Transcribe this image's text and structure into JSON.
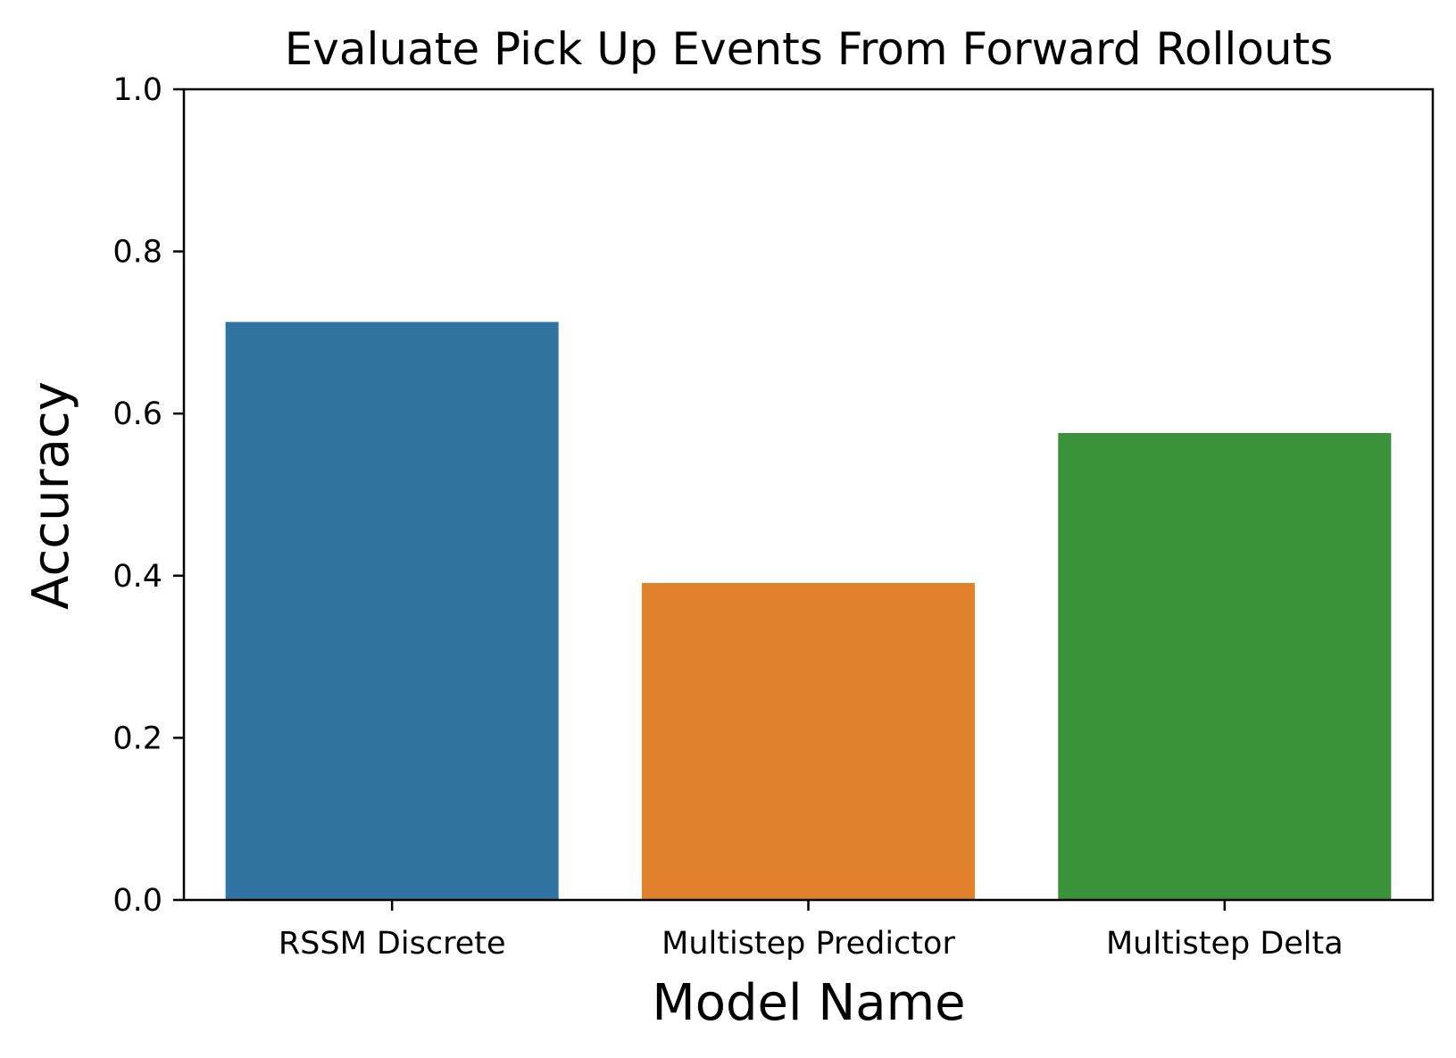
{
  "chart_data": {
    "type": "bar",
    "title": "Evaluate Pick Up Events From Forward Rollouts",
    "xlabel": "Model Name",
    "ylabel": "Accuracy",
    "categories": [
      "RSSM Discrete",
      "Multistep Predictor",
      "Multistep Delta"
    ],
    "values": [
      0.713,
      0.391,
      0.576
    ],
    "colors": [
      "#3274a1",
      "#e1812c",
      "#3a923a"
    ],
    "ylim": [
      0,
      1.0
    ],
    "yticks": [
      "0.0",
      "0.2",
      "0.4",
      "0.6",
      "0.8",
      "1.0"
    ],
    "grid": false,
    "legend": "none"
  }
}
